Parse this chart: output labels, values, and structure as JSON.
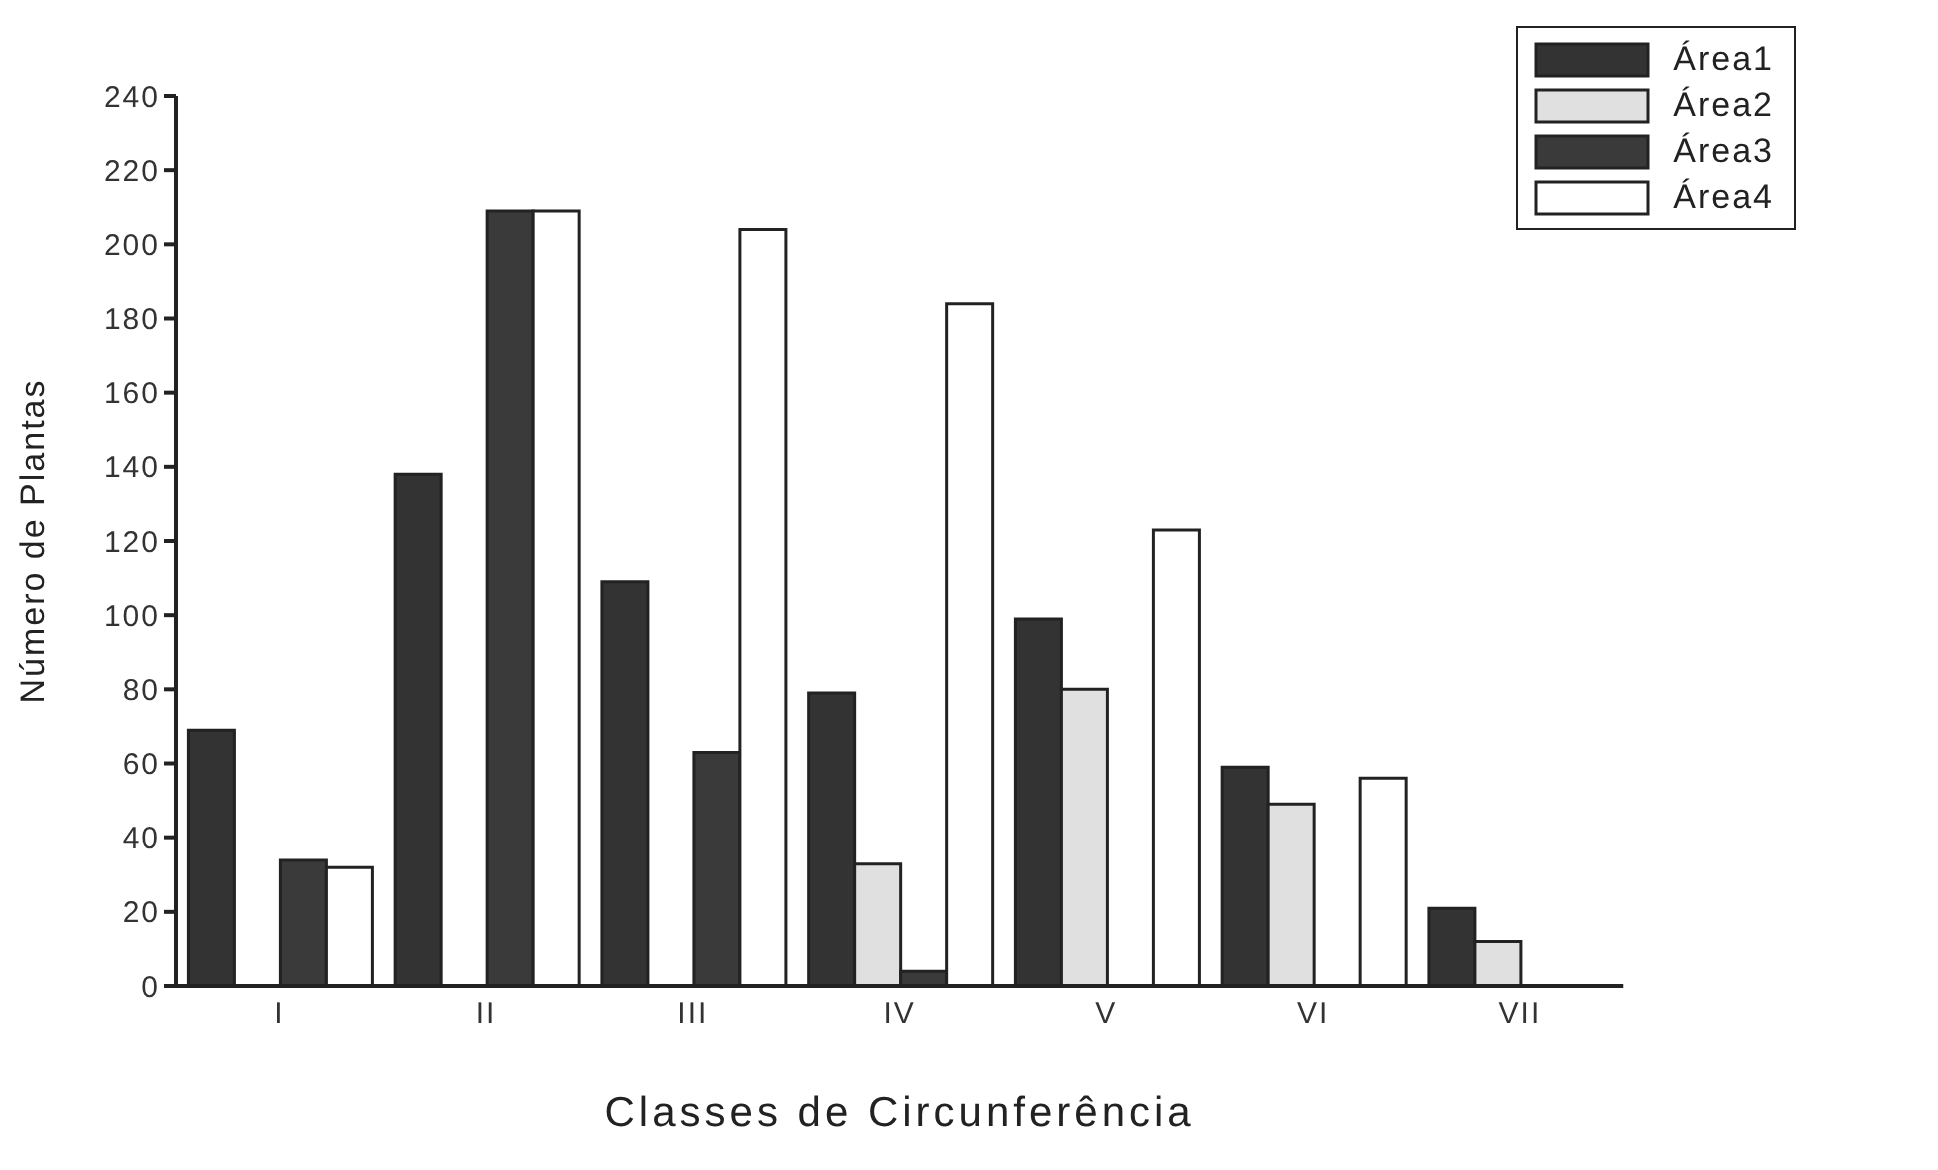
{
  "chart_data": {
    "type": "bar",
    "xlabel": "Classes de Circunferência",
    "ylabel": "Número de Plantas",
    "categories": [
      "I",
      "II",
      "III",
      "IV",
      "V",
      "VI",
      "VII"
    ],
    "series": [
      {
        "name": "Área1",
        "color": "#333333",
        "values": [
          69,
          138,
          109,
          79,
          99,
          59,
          21
        ]
      },
      {
        "name": "Área2",
        "color": "#e0e0e0",
        "values": [
          0,
          0,
          0,
          33,
          80,
          49,
          12
        ]
      },
      {
        "name": "Área3",
        "color": "#3a3a3a",
        "values": [
          34,
          209,
          63,
          4,
          0,
          0,
          0
        ]
      },
      {
        "name": "Área4",
        "color": "#ffffff",
        "values": [
          32,
          209,
          204,
          184,
          123,
          56,
          0
        ]
      }
    ],
    "ylim": [
      0,
      240
    ],
    "yticks": [
      0,
      20,
      40,
      60,
      80,
      100,
      120,
      140,
      160,
      180,
      200,
      220,
      240
    ],
    "grid": false,
    "legend": "top right"
  }
}
